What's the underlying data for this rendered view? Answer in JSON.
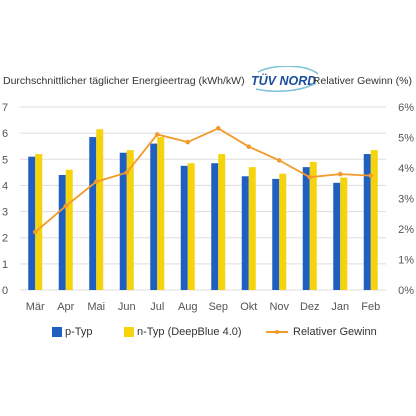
{
  "headers": {
    "left": "Durchschnittlicher täglicher Energieertrag  (kWh/kW)",
    "right": "Relativer Gewinn  (%)"
  },
  "logo": {
    "text": "TÜV NORD",
    "colors": {
      "blue": "#1b4e9b",
      "teal": "#7fc4d9"
    }
  },
  "legend": {
    "p_type": "p-Typ",
    "n_type": "n-Typ (DeepBlue 4.0)",
    "gain": "Relativer Gewinn"
  },
  "colors": {
    "p_type": "#1e5fc0",
    "n_type": "#f5d40d",
    "gain": "#f39a2a",
    "grid": "#dddddd",
    "axis_text": "#555555"
  },
  "chart_data": {
    "type": "bar",
    "categories": [
      "Mär",
      "Apr",
      "Mai",
      "Jun",
      "Jul",
      "Aug",
      "Sep",
      "Okt",
      "Nov",
      "Dez",
      "Jan",
      "Feb"
    ],
    "y_left": {
      "ticks": [
        "0",
        "1",
        "2",
        "3",
        "4",
        "5",
        "6",
        "7"
      ],
      "range": [
        0,
        7
      ]
    },
    "y_right": {
      "ticks": [
        "0%",
        "1%",
        "2%",
        "3%",
        "4%",
        "5%",
        "6%"
      ],
      "range": [
        0,
        6
      ]
    },
    "grid": true,
    "legend_position": "bottom",
    "series": [
      {
        "name": "p-Typ",
        "type": "bar",
        "axis": "left",
        "values": [
          5.1,
          4.4,
          5.85,
          5.25,
          5.6,
          4.75,
          4.85,
          4.35,
          4.25,
          4.7,
          4.1,
          5.2
        ]
      },
      {
        "name": "n-Typ (DeepBlue 4.0)",
        "type": "bar",
        "axis": "left",
        "values": [
          5.2,
          4.6,
          6.15,
          5.35,
          5.85,
          4.85,
          5.2,
          4.7,
          4.45,
          4.9,
          4.3,
          5.35
        ]
      },
      {
        "name": "Relativer Gewinn",
        "type": "line",
        "axis": "right",
        "values": [
          1.9,
          2.75,
          3.55,
          3.85,
          5.1,
          4.85,
          5.3,
          4.7,
          4.25,
          3.7,
          3.8,
          3.75
        ]
      }
    ]
  }
}
